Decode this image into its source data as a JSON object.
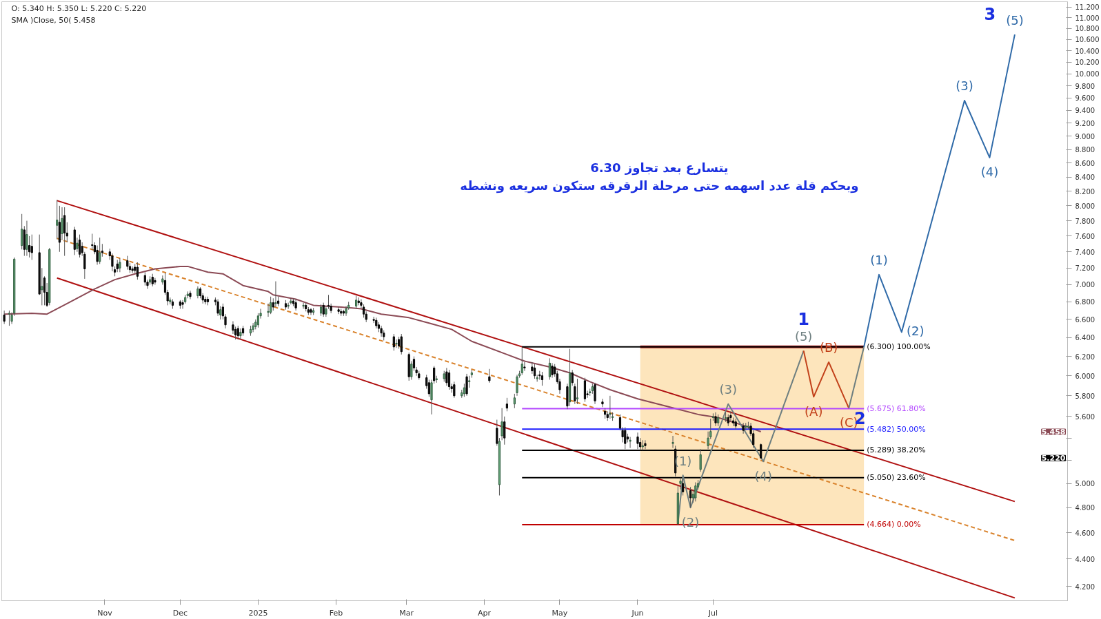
{
  "chart_data": {
    "type": "candlestick",
    "log": true,
    "ylim": [
      4.1,
      11.3
    ],
    "xlim": [
      "2024-09-21",
      "2025-11-19"
    ],
    "yticks": [
      {
        "value": 4.2,
        "label": "4.200"
      },
      {
        "value": 4.4,
        "label": "4.400"
      },
      {
        "value": 4.6,
        "label": "4.600"
      },
      {
        "value": 4.8,
        "label": "4.800"
      },
      {
        "value": 5.0,
        "label": "5.000"
      },
      {
        "value": 5.2,
        "label": null
      },
      {
        "value": 5.4,
        "label": null
      },
      {
        "value": 5.6,
        "label": "5.600"
      },
      {
        "value": 5.8,
        "label": "5.800"
      },
      {
        "value": 6.0,
        "label": "6.000"
      },
      {
        "value": 6.2,
        "label": "6.200"
      },
      {
        "value": 6.4,
        "label": "6.400"
      },
      {
        "value": 6.6,
        "label": "6.600"
      },
      {
        "value": 6.8,
        "label": "6.800"
      },
      {
        "value": 7.0,
        "label": "7.000"
      },
      {
        "value": 7.2,
        "label": "7.200"
      },
      {
        "value": 7.4,
        "label": "7.400"
      },
      {
        "value": 7.6,
        "label": "7.600"
      },
      {
        "value": 7.8,
        "label": "7.800"
      },
      {
        "value": 8.0,
        "label": "8.000"
      },
      {
        "value": 8.2,
        "label": "8.200"
      },
      {
        "value": 8.4,
        "label": "8.400"
      },
      {
        "value": 8.6,
        "label": "8.600"
      },
      {
        "value": 8.8,
        "label": "8.800"
      },
      {
        "value": 9.0,
        "label": "9.000"
      },
      {
        "value": 9.2,
        "label": "9.200"
      },
      {
        "value": 9.4,
        "label": "9.400"
      },
      {
        "value": 9.6,
        "label": "9.600"
      },
      {
        "value": 9.8,
        "label": "9.800"
      },
      {
        "value": 10.0,
        "label": "10.000"
      },
      {
        "value": 10.2,
        "label": "10.200"
      },
      {
        "value": 10.4,
        "label": "10.400"
      },
      {
        "value": 10.6,
        "label": "10.600"
      },
      {
        "value": 10.8,
        "label": "10.800"
      },
      {
        "value": 11.0,
        "label": "11.000"
      },
      {
        "value": 11.2,
        "label": "11.200"
      }
    ],
    "xticks": [
      {
        "value": "2024-11-01",
        "label": "Nov"
      },
      {
        "value": "2024-12-01",
        "label": "Dec"
      },
      {
        "value": "2025-01-01",
        "label": "2025"
      },
      {
        "value": "2025-02-01",
        "label": "Feb"
      },
      {
        "value": "2025-03-01",
        "label": "Mar"
      },
      {
        "value": "2025-04-01",
        "label": "Apr"
      },
      {
        "value": "2025-05-01",
        "label": "May"
      },
      {
        "value": "2025-06-01",
        "label": "Jun"
      },
      {
        "value": "2025-07-01",
        "label": "Jul"
      }
    ],
    "x": [
      "2024-09-22",
      "2024-09-24",
      "2024-09-25",
      "2024-09-26",
      "2024-09-29",
      "2024-09-30",
      "2024-10-01",
      "2024-10-02",
      "2024-10-03",
      "2024-10-06",
      "2024-10-07",
      "2024-10-08",
      "2024-10-09",
      "2024-10-10",
      "2024-10-13",
      "2024-10-14",
      "2024-10-15",
      "2024-10-16",
      "2024-10-17",
      "2024-10-20",
      "2024-10-21",
      "2024-10-22",
      "2024-10-23",
      "2024-10-24",
      "2024-10-27",
      "2024-10-28",
      "2024-10-29",
      "2024-10-30",
      "2024-10-31",
      "2024-11-03",
      "2024-11-04",
      "2024-11-05",
      "2024-11-06",
      "2024-11-07",
      "2024-11-10",
      "2024-11-11",
      "2024-11-12",
      "2024-11-13",
      "2024-11-14",
      "2024-11-17",
      "2024-11-18",
      "2024-11-19",
      "2024-11-20",
      "2024-11-21",
      "2024-11-24",
      "2024-11-25",
      "2024-11-26",
      "2024-11-27",
      "2024-11-28",
      "2024-12-01",
      "2024-12-02",
      "2024-12-03",
      "2024-12-04",
      "2024-12-05",
      "2024-12-08",
      "2024-12-09",
      "2024-12-10",
      "2024-12-11",
      "2024-12-12",
      "2024-12-15",
      "2024-12-16",
      "2024-12-17",
      "2024-12-18",
      "2024-12-19",
      "2024-12-22",
      "2024-12-23",
      "2024-12-24",
      "2024-12-25",
      "2024-12-26",
      "2024-12-29",
      "2024-12-30",
      "2024-12-31",
      "2025-01-01",
      "2025-01-02",
      "2025-01-05",
      "2025-01-06",
      "2025-01-07",
      "2025-01-08",
      "2025-01-09",
      "2025-01-12",
      "2025-01-13",
      "2025-01-14",
      "2025-01-15",
      "2025-01-16",
      "2025-01-19",
      "2025-01-20",
      "2025-01-21",
      "2025-01-22",
      "2025-01-23",
      "2025-01-26",
      "2025-01-27",
      "2025-01-28",
      "2025-01-29",
      "2025-01-30",
      "2025-02-02",
      "2025-02-03",
      "2025-02-04",
      "2025-02-05",
      "2025-02-06",
      "2025-02-09",
      "2025-02-10",
      "2025-02-11",
      "2025-02-12",
      "2025-02-13",
      "2025-02-16",
      "2025-02-17",
      "2025-02-18",
      "2025-02-19",
      "2025-02-20",
      "2025-02-24",
      "2025-02-25",
      "2025-02-26",
      "2025-02-27",
      "2025-03-02",
      "2025-03-03",
      "2025-03-04",
      "2025-03-05",
      "2025-03-06",
      "2025-03-09",
      "2025-03-10",
      "2025-03-11",
      "2025-03-12",
      "2025-03-13",
      "2025-03-16",
      "2025-03-17",
      "2025-03-18",
      "2025-03-19",
      "2025-03-20",
      "2025-03-23",
      "2025-03-24",
      "2025-03-25",
      "2025-03-26",
      "2025-03-27",
      "2025-04-03",
      "2025-04-06",
      "2025-04-07",
      "2025-04-08",
      "2025-04-09",
      "2025-04-10",
      "2025-04-13",
      "2025-04-14",
      "2025-04-15",
      "2025-04-16",
      "2025-04-17",
      "2025-04-20",
      "2025-04-21",
      "2025-04-22",
      "2025-04-23",
      "2025-04-24",
      "2025-04-27",
      "2025-04-28",
      "2025-04-29",
      "2025-04-30",
      "2025-05-01",
      "2025-05-04",
      "2025-05-05",
      "2025-05-06",
      "2025-05-07",
      "2025-05-08",
      "2025-05-11",
      "2025-05-12",
      "2025-05-13",
      "2025-05-14",
      "2025-05-15",
      "2025-05-18",
      "2025-05-19",
      "2025-05-20",
      "2025-05-21",
      "2025-05-22",
      "2025-05-25",
      "2025-05-26",
      "2025-05-27",
      "2025-05-28",
      "2025-05-29",
      "2025-06-01",
      "2025-06-02",
      "2025-06-03",
      "2025-06-04",
      "2025-06-15",
      "2025-06-16",
      "2025-06-17",
      "2025-06-18",
      "2025-06-19",
      "2025-06-22",
      "2025-06-23",
      "2025-06-24",
      "2025-06-25",
      "2025-06-26",
      "2025-06-29",
      "2025-06-30",
      "2025-07-01",
      "2025-07-02",
      "2025-07-03",
      "2025-07-06",
      "2025-07-07",
      "2025-07-08",
      "2025-07-09",
      "2025-07-10",
      "2025-07-13",
      "2025-07-14",
      "2025-07-15",
      "2025-07-16",
      "2025-07-17",
      "2025-07-20"
    ],
    "ohlc": [
      [
        6.65,
        6.7,
        6.55,
        6.58
      ],
      [
        6.66,
        6.7,
        6.53,
        6.67
      ],
      [
        6.58,
        6.68,
        6.55,
        6.65
      ],
      [
        6.67,
        7.33,
        6.64,
        7.31
      ],
      [
        7.48,
        7.89,
        7.43,
        7.69
      ],
      [
        7.68,
        7.73,
        7.35,
        7.43
      ],
      [
        7.43,
        7.8,
        7.35,
        7.62
      ],
      [
        7.48,
        7.6,
        7.33,
        7.4
      ],
      [
        7.47,
        7.62,
        7.3,
        7.39
      ],
      [
        7.39,
        7.62,
        6.88,
        6.89
      ],
      [
        6.94,
        7.2,
        6.76,
        6.98
      ],
      [
        7.08,
        7.1,
        6.76,
        6.91
      ],
      [
        6.91,
        7.02,
        6.74,
        6.76
      ],
      [
        6.79,
        7.45,
        6.76,
        7.43
      ],
      [
        7.74,
        8.08,
        7.56,
        7.81
      ],
      [
        7.78,
        8.0,
        7.4,
        7.52
      ],
      [
        7.63,
        7.98,
        7.55,
        7.83
      ],
      [
        7.87,
        7.98,
        7.35,
        7.64
      ],
      [
        7.64,
        7.78,
        7.52,
        7.6
      ],
      [
        7.68,
        7.72,
        7.36,
        7.43
      ],
      [
        7.44,
        7.58,
        7.4,
        7.51
      ],
      [
        7.55,
        7.62,
        7.33,
        7.37
      ],
      [
        7.47,
        7.52,
        7.35,
        7.39
      ],
      [
        7.37,
        7.4,
        7.07,
        7.19
      ],
      [
        7.49,
        7.63,
        7.42,
        7.48
      ],
      [
        7.48,
        7.52,
        7.37,
        7.4
      ],
      [
        7.42,
        7.48,
        7.24,
        7.28
      ],
      [
        7.28,
        7.58,
        7.25,
        7.39
      ],
      [
        7.41,
        7.5,
        7.34,
        7.39
      ],
      [
        7.4,
        7.44,
        7.3,
        7.35
      ],
      [
        7.35,
        7.38,
        7.16,
        7.22
      ],
      [
        7.18,
        7.22,
        7.1,
        7.15
      ],
      [
        7.25,
        7.3,
        7.15,
        7.19
      ],
      [
        7.2,
        7.32,
        7.15,
        7.27
      ],
      [
        7.29,
        7.35,
        7.18,
        7.22
      ],
      [
        7.22,
        7.26,
        7.14,
        7.18
      ],
      [
        7.19,
        7.22,
        7.14,
        7.17
      ],
      [
        7.21,
        7.25,
        7.14,
        7.17
      ],
      [
        7.21,
        7.27,
        7.06,
        7.1
      ],
      [
        7.11,
        7.15,
        6.99,
        7.03
      ],
      [
        7.03,
        7.06,
        6.95,
        6.99
      ],
      [
        7.03,
        7.1,
        7.0,
        7.06
      ],
      [
        7.09,
        7.13,
        6.98,
        7.01
      ],
      [
        7.05,
        7.08,
        7.0,
        7.03
      ],
      [
        7.03,
        7.11,
        7.0,
        7.07
      ],
      [
        7.05,
        7.14,
        6.88,
        6.91
      ],
      [
        6.91,
        6.94,
        6.76,
        6.81
      ],
      [
        6.8,
        6.85,
        6.77,
        6.82
      ],
      [
        6.8,
        6.83,
        6.72,
        6.76
      ],
      [
        6.8,
        6.82,
        6.72,
        6.76
      ],
      [
        6.79,
        6.82,
        6.72,
        6.77
      ],
      [
        6.8,
        6.88,
        6.78,
        6.85
      ],
      [
        6.87,
        6.92,
        6.84,
        6.89
      ],
      [
        6.9,
        6.93,
        6.83,
        6.86
      ],
      [
        6.87,
        6.98,
        6.84,
        6.95
      ],
      [
        6.95,
        6.97,
        6.84,
        6.87
      ],
      [
        6.87,
        6.9,
        6.78,
        6.82
      ],
      [
        6.83,
        6.86,
        6.77,
        6.8
      ],
      [
        6.83,
        6.86,
        6.76,
        6.8
      ],
      [
        6.82,
        6.85,
        6.76,
        6.8
      ],
      [
        6.8,
        6.83,
        6.64,
        6.67
      ],
      [
        6.65,
        6.75,
        6.6,
        6.71
      ],
      [
        6.74,
        6.78,
        6.6,
        6.64
      ],
      [
        6.63,
        6.66,
        6.5,
        6.54
      ],
      [
        6.54,
        6.58,
        6.44,
        6.48
      ],
      [
        6.49,
        6.52,
        6.38,
        6.43
      ],
      [
        6.5,
        6.53,
        6.38,
        6.42
      ],
      [
        6.42,
        6.5,
        6.38,
        6.46
      ],
      [
        6.5,
        6.53,
        6.42,
        6.45
      ],
      [
        6.45,
        6.53,
        6.42,
        6.49
      ],
      [
        6.49,
        6.56,
        6.46,
        6.53
      ],
      [
        6.52,
        6.6,
        6.49,
        6.57
      ],
      [
        6.54,
        6.67,
        6.51,
        6.64
      ],
      [
        6.64,
        6.72,
        6.61,
        6.67
      ],
      [
        6.68,
        6.78,
        6.63,
        6.69
      ],
      [
        6.68,
        6.86,
        6.66,
        6.79
      ],
      [
        6.79,
        6.84,
        6.7,
        6.74
      ],
      [
        6.78,
        7.04,
        6.74,
        6.79
      ],
      [
        6.81,
        6.86,
        6.75,
        6.78
      ],
      [
        6.78,
        6.82,
        6.71,
        6.74
      ],
      [
        6.75,
        6.79,
        6.72,
        6.76
      ],
      [
        6.79,
        6.84,
        6.77,
        6.81
      ],
      [
        6.81,
        6.84,
        6.75,
        6.78
      ],
      [
        6.79,
        6.83,
        6.7,
        6.73
      ],
      [
        6.75,
        6.79,
        6.72,
        6.76
      ],
      [
        6.76,
        6.79,
        6.69,
        6.72
      ],
      [
        6.71,
        6.74,
        6.65,
        6.68
      ],
      [
        6.71,
        6.73,
        6.65,
        6.68
      ],
      [
        6.68,
        6.73,
        6.65,
        6.7
      ],
      [
        6.67,
        6.77,
        6.64,
        6.74
      ],
      [
        6.76,
        6.79,
        6.63,
        6.66
      ],
      [
        6.66,
        6.75,
        6.63,
        6.72
      ],
      [
        6.76,
        6.88,
        6.72,
        6.75
      ],
      [
        6.75,
        6.78,
        6.67,
        6.7
      ],
      [
        6.71,
        6.74,
        6.66,
        6.69
      ],
      [
        6.69,
        6.72,
        6.64,
        6.67
      ],
      [
        6.69,
        6.71,
        6.64,
        6.67
      ],
      [
        6.67,
        6.75,
        6.64,
        6.72
      ],
      [
        6.73,
        6.8,
        6.71,
        6.76
      ],
      [
        6.75,
        6.87,
        6.72,
        6.82
      ],
      [
        6.81,
        6.85,
        6.76,
        6.79
      ],
      [
        6.79,
        6.83,
        6.73,
        6.76
      ],
      [
        6.74,
        6.77,
        6.62,
        6.66
      ],
      [
        6.66,
        6.69,
        6.57,
        6.6
      ],
      [
        6.6,
        6.63,
        6.56,
        6.59
      ],
      [
        6.59,
        6.62,
        6.5,
        6.53
      ],
      [
        6.54,
        6.57,
        6.46,
        6.5
      ],
      [
        6.5,
        6.53,
        6.41,
        6.45
      ],
      [
        6.45,
        6.48,
        6.37,
        6.41
      ],
      [
        6.41,
        6.44,
        6.26,
        6.3
      ],
      [
        6.33,
        6.38,
        6.29,
        6.34
      ],
      [
        6.38,
        6.41,
        6.28,
        6.31
      ],
      [
        6.41,
        6.44,
        6.22,
        6.25
      ],
      [
        6.22,
        6.24,
        5.95,
        5.99
      ],
      [
        5.99,
        6.15,
        5.96,
        6.12
      ],
      [
        6.17,
        6.2,
        6.05,
        6.08
      ],
      [
        6.06,
        6.09,
        6.0,
        6.03
      ],
      [
        6.02,
        6.05,
        5.96,
        5.98
      ],
      [
        5.98,
        6.01,
        5.87,
        5.9
      ],
      [
        5.93,
        5.96,
        5.79,
        5.82
      ],
      [
        5.76,
        5.96,
        5.62,
        5.93
      ],
      [
        6.08,
        6.1,
        5.92,
        5.95
      ],
      [
        5.96,
        6.0,
        5.93,
        5.97
      ],
      [
        5.97,
        6.05,
        5.94,
        6.02
      ],
      [
        6.04,
        6.08,
        5.9,
        5.93
      ],
      [
        6.03,
        6.06,
        5.86,
        5.89
      ],
      [
        5.89,
        5.92,
        5.83,
        5.87
      ],
      [
        5.91,
        5.94,
        5.78,
        5.8
      ],
      [
        5.8,
        5.86,
        5.78,
        5.83
      ],
      [
        5.82,
        5.92,
        5.79,
        5.88
      ],
      [
        5.99,
        6.02,
        5.8,
        5.82
      ],
      [
        5.94,
        6.0,
        5.88,
        5.95
      ],
      [
        6.01,
        6.06,
        5.98,
        6.03
      ],
      [
        5.99,
        6.07,
        5.93,
        5.95
      ],
      [
        5.49,
        5.57,
        5.33,
        5.35
      ],
      [
        4.99,
        5.4,
        4.9,
        5.37
      ],
      [
        5.42,
        5.68,
        5.38,
        5.55
      ],
      [
        5.55,
        5.6,
        5.34,
        5.4
      ],
      [
        5.72,
        5.78,
        5.65,
        5.68
      ],
      [
        5.72,
        5.82,
        5.68,
        5.78
      ],
      [
        5.83,
        6.01,
        5.8,
        5.99
      ],
      [
        6.0,
        6.05,
        5.98,
        6.02
      ],
      [
        6.03,
        6.29,
        6.01,
        6.12
      ],
      [
        6.09,
        6.14,
        6.05,
        6.08
      ],
      [
        6.09,
        6.14,
        6.02,
        6.05
      ],
      [
        6.08,
        6.12,
        5.97,
        6.0
      ],
      [
        5.97,
        6.01,
        5.94,
        5.98
      ],
      [
        6.01,
        6.05,
        5.96,
        6.0
      ],
      [
        6.0,
        6.04,
        5.9,
        5.96
      ],
      [
        5.99,
        6.18,
        5.96,
        6.13
      ],
      [
        6.1,
        6.13,
        5.98,
        6.01
      ],
      [
        6.09,
        6.12,
        5.99,
        6.02
      ],
      [
        6.02,
        6.05,
        5.92,
        5.94
      ],
      [
        5.94,
        5.97,
        5.82,
        5.86
      ],
      [
        5.89,
        5.92,
        5.67,
        5.7
      ],
      [
        5.74,
        6.28,
        5.7,
        6.03
      ],
      [
        6.03,
        6.06,
        5.9,
        5.93
      ],
      [
        5.89,
        5.92,
        5.72,
        5.75
      ],
      [
        5.77,
        5.97,
        5.72,
        5.78
      ],
      [
        5.95,
        5.98,
        5.74,
        5.77
      ],
      [
        5.82,
        5.85,
        5.78,
        5.81
      ],
      [
        5.83,
        5.87,
        5.8,
        5.84
      ],
      [
        5.85,
        5.92,
        5.82,
        5.89
      ],
      [
        5.91,
        5.93,
        5.72,
        5.75
      ],
      [
        5.74,
        5.77,
        5.69,
        5.72
      ],
      [
        5.65,
        5.68,
        5.58,
        5.62
      ],
      [
        5.62,
        5.65,
        5.56,
        5.59
      ],
      [
        5.62,
        5.8,
        5.58,
        5.63
      ],
      [
        5.59,
        5.64,
        5.56,
        5.6
      ],
      [
        5.59,
        5.62,
        5.47,
        5.49
      ],
      [
        5.47,
        5.5,
        5.36,
        5.41
      ],
      [
        5.47,
        5.5,
        5.3,
        5.35
      ],
      [
        5.41,
        5.44,
        5.36,
        5.39
      ],
      [
        5.37,
        5.41,
        5.31,
        5.38
      ],
      [
        5.41,
        5.45,
        5.3,
        5.35
      ],
      [
        5.36,
        5.4,
        5.29,
        5.32
      ],
      [
        5.32,
        5.38,
        5.29,
        5.33
      ],
      [
        5.35,
        5.38,
        5.3,
        5.33
      ],
      [
        5.35,
        5.42,
        5.31,
        5.36
      ],
      [
        5.3,
        5.33,
        5.06,
        5.09
      ],
      [
        4.67,
        4.98,
        4.66,
        4.92
      ],
      [
        5.0,
        5.05,
        4.95,
        5.02
      ],
      [
        5.0,
        5.04,
        4.9,
        4.93
      ],
      [
        4.94,
        4.97,
        4.8,
        4.88
      ],
      [
        4.88,
        4.95,
        4.84,
        4.91
      ],
      [
        4.88,
        5.01,
        4.85,
        4.98
      ],
      [
        4.97,
        5.03,
        4.95,
        5.0
      ],
      [
        5.12,
        5.3,
        5.1,
        5.25
      ],
      [
        5.33,
        5.46,
        5.3,
        5.4
      ],
      [
        5.41,
        5.58,
        5.39,
        5.46
      ],
      [
        5.59,
        5.63,
        5.56,
        5.6
      ],
      [
        5.6,
        5.64,
        5.51,
        5.54
      ],
      [
        5.54,
        5.62,
        5.51,
        5.59
      ],
      [
        5.58,
        5.64,
        5.55,
        5.59
      ],
      [
        5.59,
        5.62,
        5.51,
        5.54
      ],
      [
        5.61,
        5.65,
        5.56,
        5.59
      ],
      [
        5.56,
        5.59,
        5.51,
        5.54
      ],
      [
        5.55,
        5.58,
        5.48,
        5.51
      ],
      [
        5.51,
        5.54,
        5.44,
        5.47
      ],
      [
        5.5,
        5.54,
        5.47,
        5.51
      ],
      [
        5.5,
        5.55,
        5.48,
        5.51
      ],
      [
        5.51,
        5.54,
        5.42,
        5.44
      ],
      [
        5.44,
        5.47,
        5.31,
        5.34
      ],
      [
        5.34,
        5.35,
        5.22,
        5.22
      ]
    ],
    "series": [
      {
        "type": "line",
        "x": [
          "2025-06-02",
          "2025-08-30"
        ],
        "values": [
          6.3,
          6.3
        ],
        "lower": [
          4.664,
          4.664
        ],
        "upper": [
          6.3,
          6.3
        ],
        "color": "#b22222",
        "line_style": "solid"
      },
      {
        "type": "line",
        "x": [
          "2024-10-13",
          "2025-10-29"
        ],
        "values": [
          8.07,
          4.85
        ],
        "color": "#b01010",
        "line_style": "solid"
      },
      {
        "type": "line",
        "x": [
          "2024-10-13",
          "2025-10-29"
        ],
        "values": [
          7.08,
          4.12
        ],
        "color": "#b01010",
        "line_style": "solid"
      },
      {
        "type": "line",
        "x": [
          "2024-10-13",
          "2025-10-29"
        ],
        "values": [
          7.57,
          4.54
        ],
        "color": "#d9822b",
        "line_style": "dashed"
      },
      {
        "type": "line",
        "x": [
          "2024-09-22",
          "2024-10-03",
          "2024-10-09",
          "2024-10-17",
          "2024-10-28",
          "2024-11-05",
          "2024-11-13",
          "2024-11-21",
          "2024-12-01",
          "2024-12-04",
          "2024-12-12",
          "2024-12-18",
          "2024-12-26",
          "2025-01-05",
          "2025-01-07",
          "2025-01-16",
          "2025-01-23",
          "2025-02-03",
          "2025-02-11",
          "2025-02-19",
          "2025-03-02",
          "2025-03-10",
          "2025-03-19",
          "2025-03-27",
          "2025-04-10",
          "2025-04-17",
          "2025-04-27",
          "2025-05-05",
          "2025-05-13",
          "2025-05-21",
          "2025-06-01",
          "2025-06-17",
          "2025-06-25",
          "2025-07-03",
          "2025-07-14",
          "2025-07-20"
        ],
        "values": [
          6.66,
          6.67,
          6.66,
          6.78,
          6.95,
          7.06,
          7.13,
          7.19,
          7.22,
          7.22,
          7.15,
          7.13,
          6.99,
          6.92,
          6.88,
          6.83,
          6.76,
          6.74,
          6.72,
          6.66,
          6.62,
          6.56,
          6.49,
          6.36,
          6.22,
          6.15,
          6.09,
          6.03,
          5.94,
          5.86,
          5.77,
          5.67,
          5.62,
          5.59,
          5.51,
          5.458
        ],
        "color": "#8b4a55",
        "line_style": "solid"
      },
      {
        "type": "line",
        "x": [
          "2025-04-16",
          "2025-08-30"
        ],
        "values": [
          6.3,
          6.3
        ],
        "color": "#000000",
        "line_style": "solid",
        "name": "(6.300) 100.00%"
      },
      {
        "type": "line",
        "x": [
          "2025-04-16",
          "2025-08-30"
        ],
        "values": [
          5.675,
          5.675
        ],
        "color": "#b347ff",
        "line_style": "solid",
        "name": "(5.675) 61.80%"
      },
      {
        "type": "line",
        "x": [
          "2025-04-16",
          "2025-08-30"
        ],
        "values": [
          5.482,
          5.482
        ],
        "color": "#1a1aff",
        "line_style": "solid",
        "name": "(5.482) 50.00%"
      },
      {
        "type": "line",
        "x": [
          "2025-04-16",
          "2025-08-30"
        ],
        "values": [
          5.289,
          5.289
        ],
        "color": "#000000",
        "line_style": "solid",
        "name": "(5.289) 38.20%"
      },
      {
        "type": "line",
        "x": [
          "2025-04-16",
          "2025-08-30"
        ],
        "values": [
          5.05,
          5.05
        ],
        "color": "#000000",
        "line_style": "solid",
        "name": "(5.050) 23.60%"
      },
      {
        "type": "line",
        "x": [
          "2025-04-16",
          "2025-08-30"
        ],
        "values": [
          4.664,
          4.664
        ],
        "color": "#c00000",
        "line_style": "solid",
        "name": "(4.664) 0.00%"
      },
      {
        "type": "line",
        "x": [
          "2025-06-17",
          "2025-06-19",
          "2025-06-22",
          "2025-07-07",
          "2025-07-21",
          "2025-08-06"
        ],
        "values": [
          4.67,
          5.07,
          4.8,
          5.72,
          5.19,
          6.26
        ],
        "color": "#6e7f80",
        "line_style": "solid"
      },
      {
        "type": "line",
        "x": [
          "2025-08-06",
          "2025-08-10",
          "2025-08-16",
          "2025-08-24"
        ],
        "values": [
          6.26,
          5.79,
          6.14,
          5.68
        ],
        "color": "#c2411a",
        "line_style": "solid"
      },
      {
        "type": "line",
        "x": [
          "2025-08-24",
          "2025-08-30"
        ],
        "values": [
          5.68,
          6.3
        ],
        "color": "#6e7f80",
        "line_style": "solid"
      },
      {
        "type": "line",
        "x": [
          "2025-08-30",
          "2025-09-05",
          "2025-09-14",
          "2025-10-09",
          "2025-10-19",
          "2025-10-29"
        ],
        "values": [
          6.3,
          7.12,
          6.46,
          9.56,
          8.68,
          10.69
        ],
        "color": "#2f6aa8",
        "line_style": "solid"
      }
    ],
    "annotations": [
      "O: 5.340  H: 5.350  L: 5.220  C: 5.220",
      "SMA )Close, 50(  5.458",
      "يتسارع بعد تجاوز 6.30",
      "وبحكم قلة عدد اسهمه حتى مرحلة الرقرقه ستكون سريعه ونشطه",
      {
        "text": "(1)",
        "x": "2025-06-19",
        "y": 5.07
      },
      {
        "text": "(2)",
        "x": "2025-06-22",
        "y": 4.8
      },
      {
        "text": "(3)",
        "x": "2025-07-07",
        "y": 5.72
      },
      {
        "text": "(4)",
        "x": "2025-07-21",
        "y": 5.19
      },
      {
        "text": "(5)",
        "x": "2025-08-06",
        "y": 6.26
      },
      {
        "text": "(A)",
        "x": "2025-08-10",
        "y": 5.79
      },
      {
        "text": "(B)",
        "x": "2025-08-16",
        "y": 6.14
      },
      {
        "text": "(C)",
        "x": "2025-08-24",
        "y": 5.68
      },
      {
        "text": "(1)",
        "x": "2025-09-05",
        "y": 7.12
      },
      {
        "text": "(2)",
        "x": "2025-09-14",
        "y": 6.46
      },
      {
        "text": "(3)",
        "x": "2025-10-09",
        "y": 9.56
      },
      {
        "text": "(4)",
        "x": "2025-10-19",
        "y": 8.68
      },
      {
        "text": "(5)",
        "x": "2025-10-29",
        "y": 10.69
      },
      {
        "text": "1",
        "x": "2025-08-06",
        "y": 6.26
      },
      {
        "text": "2",
        "x": "2025-08-24",
        "y": 5.68
      },
      {
        "text": "3",
        "x": "2025-10-29",
        "y": 10.69
      },
      "5.458",
      "5.220"
    ]
  }
}
